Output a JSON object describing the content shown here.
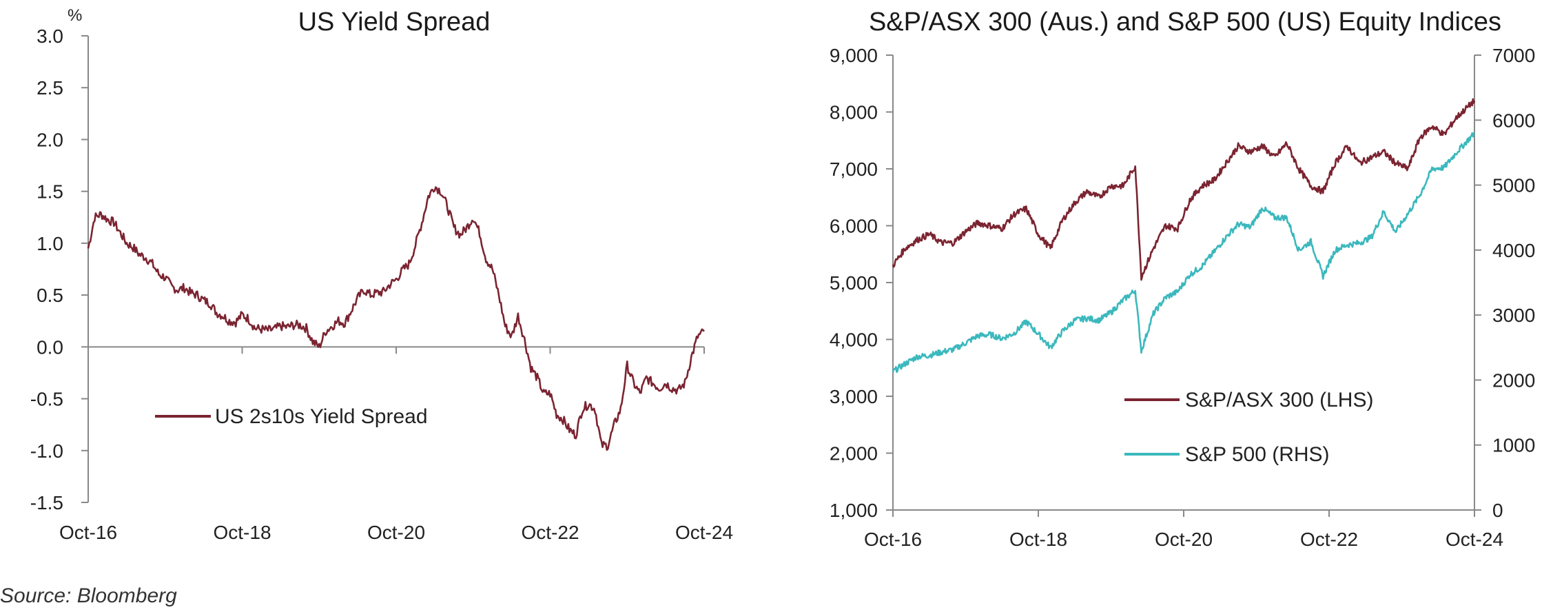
{
  "chart_data": [
    {
      "type": "line",
      "title": "US Yield Spread",
      "ylabel": "%",
      "xlabel": "",
      "ylim": [
        -1.5,
        3.0
      ],
      "yticks": [
        "3.0",
        "2.5",
        "2.0",
        "1.5",
        "1.0",
        "0.5",
        "0.0",
        "-0.5",
        "-1.0",
        "-1.5"
      ],
      "xtick_labels": [
        "Oct-16",
        "Oct-18",
        "Oct-20",
        "Oct-22",
        "Oct-24"
      ],
      "x_range": [
        "2016-10",
        "2024-10"
      ],
      "legend_position": "center-left",
      "grid": false,
      "zero_line": true,
      "series": [
        {
          "name": "US 2s10s Yield Spread",
          "color": "#7b2431",
          "x": [
            "2016-10",
            "2016-11",
            "2016-12",
            "2017-01",
            "2017-02",
            "2017-03",
            "2017-04",
            "2017-05",
            "2017-06",
            "2017-07",
            "2017-08",
            "2017-09",
            "2017-10",
            "2017-11",
            "2017-12",
            "2018-01",
            "2018-02",
            "2018-03",
            "2018-04",
            "2018-05",
            "2018-06",
            "2018-07",
            "2018-08",
            "2018-09",
            "2018-10",
            "2018-11",
            "2018-12",
            "2019-01",
            "2019-02",
            "2019-03",
            "2019-04",
            "2019-05",
            "2019-06",
            "2019-07",
            "2019-08",
            "2019-09",
            "2019-10",
            "2019-11",
            "2019-12",
            "2020-01",
            "2020-02",
            "2020-03",
            "2020-04",
            "2020-05",
            "2020-06",
            "2020-07",
            "2020-08",
            "2020-09",
            "2020-10",
            "2020-11",
            "2020-12",
            "2021-01",
            "2021-02",
            "2021-03",
            "2021-04",
            "2021-05",
            "2021-06",
            "2021-07",
            "2021-08",
            "2021-09",
            "2021-10",
            "2021-11",
            "2021-12",
            "2022-01",
            "2022-02",
            "2022-03",
            "2022-04",
            "2022-05",
            "2022-06",
            "2022-07",
            "2022-08",
            "2022-09",
            "2022-10",
            "2022-11",
            "2022-12",
            "2023-01",
            "2023-02",
            "2023-03",
            "2023-04",
            "2023-05",
            "2023-06",
            "2023-07",
            "2023-08",
            "2023-09",
            "2023-10",
            "2023-11",
            "2023-12",
            "2024-01",
            "2024-02",
            "2024-03",
            "2024-04",
            "2024-05",
            "2024-06",
            "2024-07",
            "2024-08",
            "2024-09",
            "2024-10"
          ],
          "values": [
            0.95,
            1.25,
            1.28,
            1.23,
            1.2,
            1.1,
            1.0,
            0.96,
            0.89,
            0.86,
            0.8,
            0.7,
            0.67,
            0.58,
            0.55,
            0.57,
            0.52,
            0.5,
            0.45,
            0.42,
            0.33,
            0.3,
            0.25,
            0.24,
            0.31,
            0.27,
            0.18,
            0.17,
            0.16,
            0.17,
            0.2,
            0.19,
            0.21,
            0.21,
            0.18,
            0.05,
            0.0,
            0.15,
            0.2,
            0.25,
            0.23,
            0.35,
            0.47,
            0.55,
            0.5,
            0.52,
            0.53,
            0.6,
            0.65,
            0.74,
            0.8,
            0.98,
            1.2,
            1.45,
            1.55,
            1.5,
            1.35,
            1.15,
            1.08,
            1.15,
            1.25,
            1.1,
            0.85,
            0.75,
            0.5,
            0.2,
            0.1,
            0.3,
            0.07,
            -0.2,
            -0.3,
            -0.45,
            -0.45,
            -0.65,
            -0.7,
            -0.8,
            -0.85,
            -0.6,
            -0.55,
            -0.6,
            -0.95,
            -0.95,
            -0.75,
            -0.6,
            -0.18,
            -0.35,
            -0.45,
            -0.3,
            -0.35,
            -0.4,
            -0.35,
            -0.4,
            -0.42,
            -0.35,
            -0.1,
            0.1,
            0.15
          ]
        }
      ]
    },
    {
      "type": "line",
      "title": "S&P/ASX 300 (Aus.) and S&P 500 (US) Equity Indices",
      "xlabel": "",
      "ylabel": "",
      "ylim_left": [
        1000,
        9000
      ],
      "ylim_right": [
        0,
        7000
      ],
      "yticks_left": [
        "9,000",
        "8,000",
        "7,000",
        "6,000",
        "5,000",
        "4,000",
        "3,000",
        "2,000",
        "1,000"
      ],
      "yticks_right": [
        "7000",
        "6000",
        "5000",
        "4000",
        "3000",
        "2000",
        "1000",
        "0"
      ],
      "xtick_labels": [
        "Oct-16",
        "Oct-18",
        "Oct-20",
        "Oct-22",
        "Oct-24"
      ],
      "x_range": [
        "2016-10",
        "2024-10"
      ],
      "legend_position": "bottom-right",
      "grid": false,
      "series": [
        {
          "name": "S&P/ASX 300 (LHS)",
          "axis": "left",
          "color": "#7b2431",
          "x": [
            "2016-10",
            "2016-12",
            "2017-02",
            "2017-04",
            "2017-06",
            "2017-08",
            "2017-10",
            "2017-12",
            "2018-02",
            "2018-04",
            "2018-06",
            "2018-08",
            "2018-10",
            "2018-12",
            "2019-02",
            "2019-04",
            "2019-06",
            "2019-08",
            "2019-10",
            "2019-12",
            "2020-02",
            "2020-03",
            "2020-05",
            "2020-07",
            "2020-09",
            "2020-11",
            "2021-01",
            "2021-03",
            "2021-05",
            "2021-07",
            "2021-09",
            "2021-11",
            "2022-01",
            "2022-03",
            "2022-05",
            "2022-07",
            "2022-09",
            "2022-11",
            "2023-01",
            "2023-03",
            "2023-05",
            "2023-07",
            "2023-09",
            "2023-11",
            "2024-01",
            "2024-03",
            "2024-05",
            "2024-07",
            "2024-09",
            "2024-10"
          ],
          "values": [
            5300,
            5600,
            5750,
            5850,
            5700,
            5700,
            5900,
            6050,
            6000,
            5950,
            6200,
            6300,
            5850,
            5600,
            6100,
            6400,
            6600,
            6500,
            6700,
            6700,
            7050,
            5100,
            5600,
            6000,
            5950,
            6450,
            6700,
            6800,
            7100,
            7400,
            7300,
            7400,
            7200,
            7450,
            7000,
            6700,
            6600,
            7100,
            7400,
            7100,
            7200,
            7300,
            7100,
            7000,
            7550,
            7750,
            7600,
            7900,
            8100,
            8200
          ]
        },
        {
          "name": "S&P 500 (RHS)",
          "axis": "right",
          "color": "#3bb8bd",
          "x": [
            "2016-10",
            "2016-12",
            "2017-02",
            "2017-04",
            "2017-06",
            "2017-08",
            "2017-10",
            "2017-12",
            "2018-02",
            "2018-04",
            "2018-06",
            "2018-08",
            "2018-10",
            "2018-12",
            "2019-02",
            "2019-04",
            "2019-06",
            "2019-08",
            "2019-10",
            "2019-12",
            "2020-02",
            "2020-03",
            "2020-05",
            "2020-07",
            "2020-09",
            "2020-11",
            "2021-01",
            "2021-03",
            "2021-05",
            "2021-07",
            "2021-09",
            "2021-11",
            "2022-01",
            "2022-03",
            "2022-05",
            "2022-07",
            "2022-09",
            "2022-11",
            "2023-01",
            "2023-03",
            "2023-05",
            "2023-07",
            "2023-09",
            "2023-11",
            "2024-01",
            "2024-03",
            "2024-05",
            "2024-07",
            "2024-09",
            "2024-10"
          ],
          "values": [
            2130,
            2250,
            2360,
            2380,
            2430,
            2470,
            2570,
            2680,
            2700,
            2640,
            2720,
            2900,
            2710,
            2500,
            2750,
            2920,
            2950,
            2920,
            3040,
            3230,
            3380,
            2450,
            3020,
            3270,
            3360,
            3620,
            3750,
            3970,
            4200,
            4400,
            4350,
            4650,
            4500,
            4500,
            4000,
            4130,
            3600,
            4000,
            4080,
            4110,
            4200,
            4590,
            4280,
            4560,
            4850,
            5250,
            5270,
            5500,
            5700,
            5800
          ]
        }
      ]
    }
  ],
  "source": "Source: Bloomberg"
}
